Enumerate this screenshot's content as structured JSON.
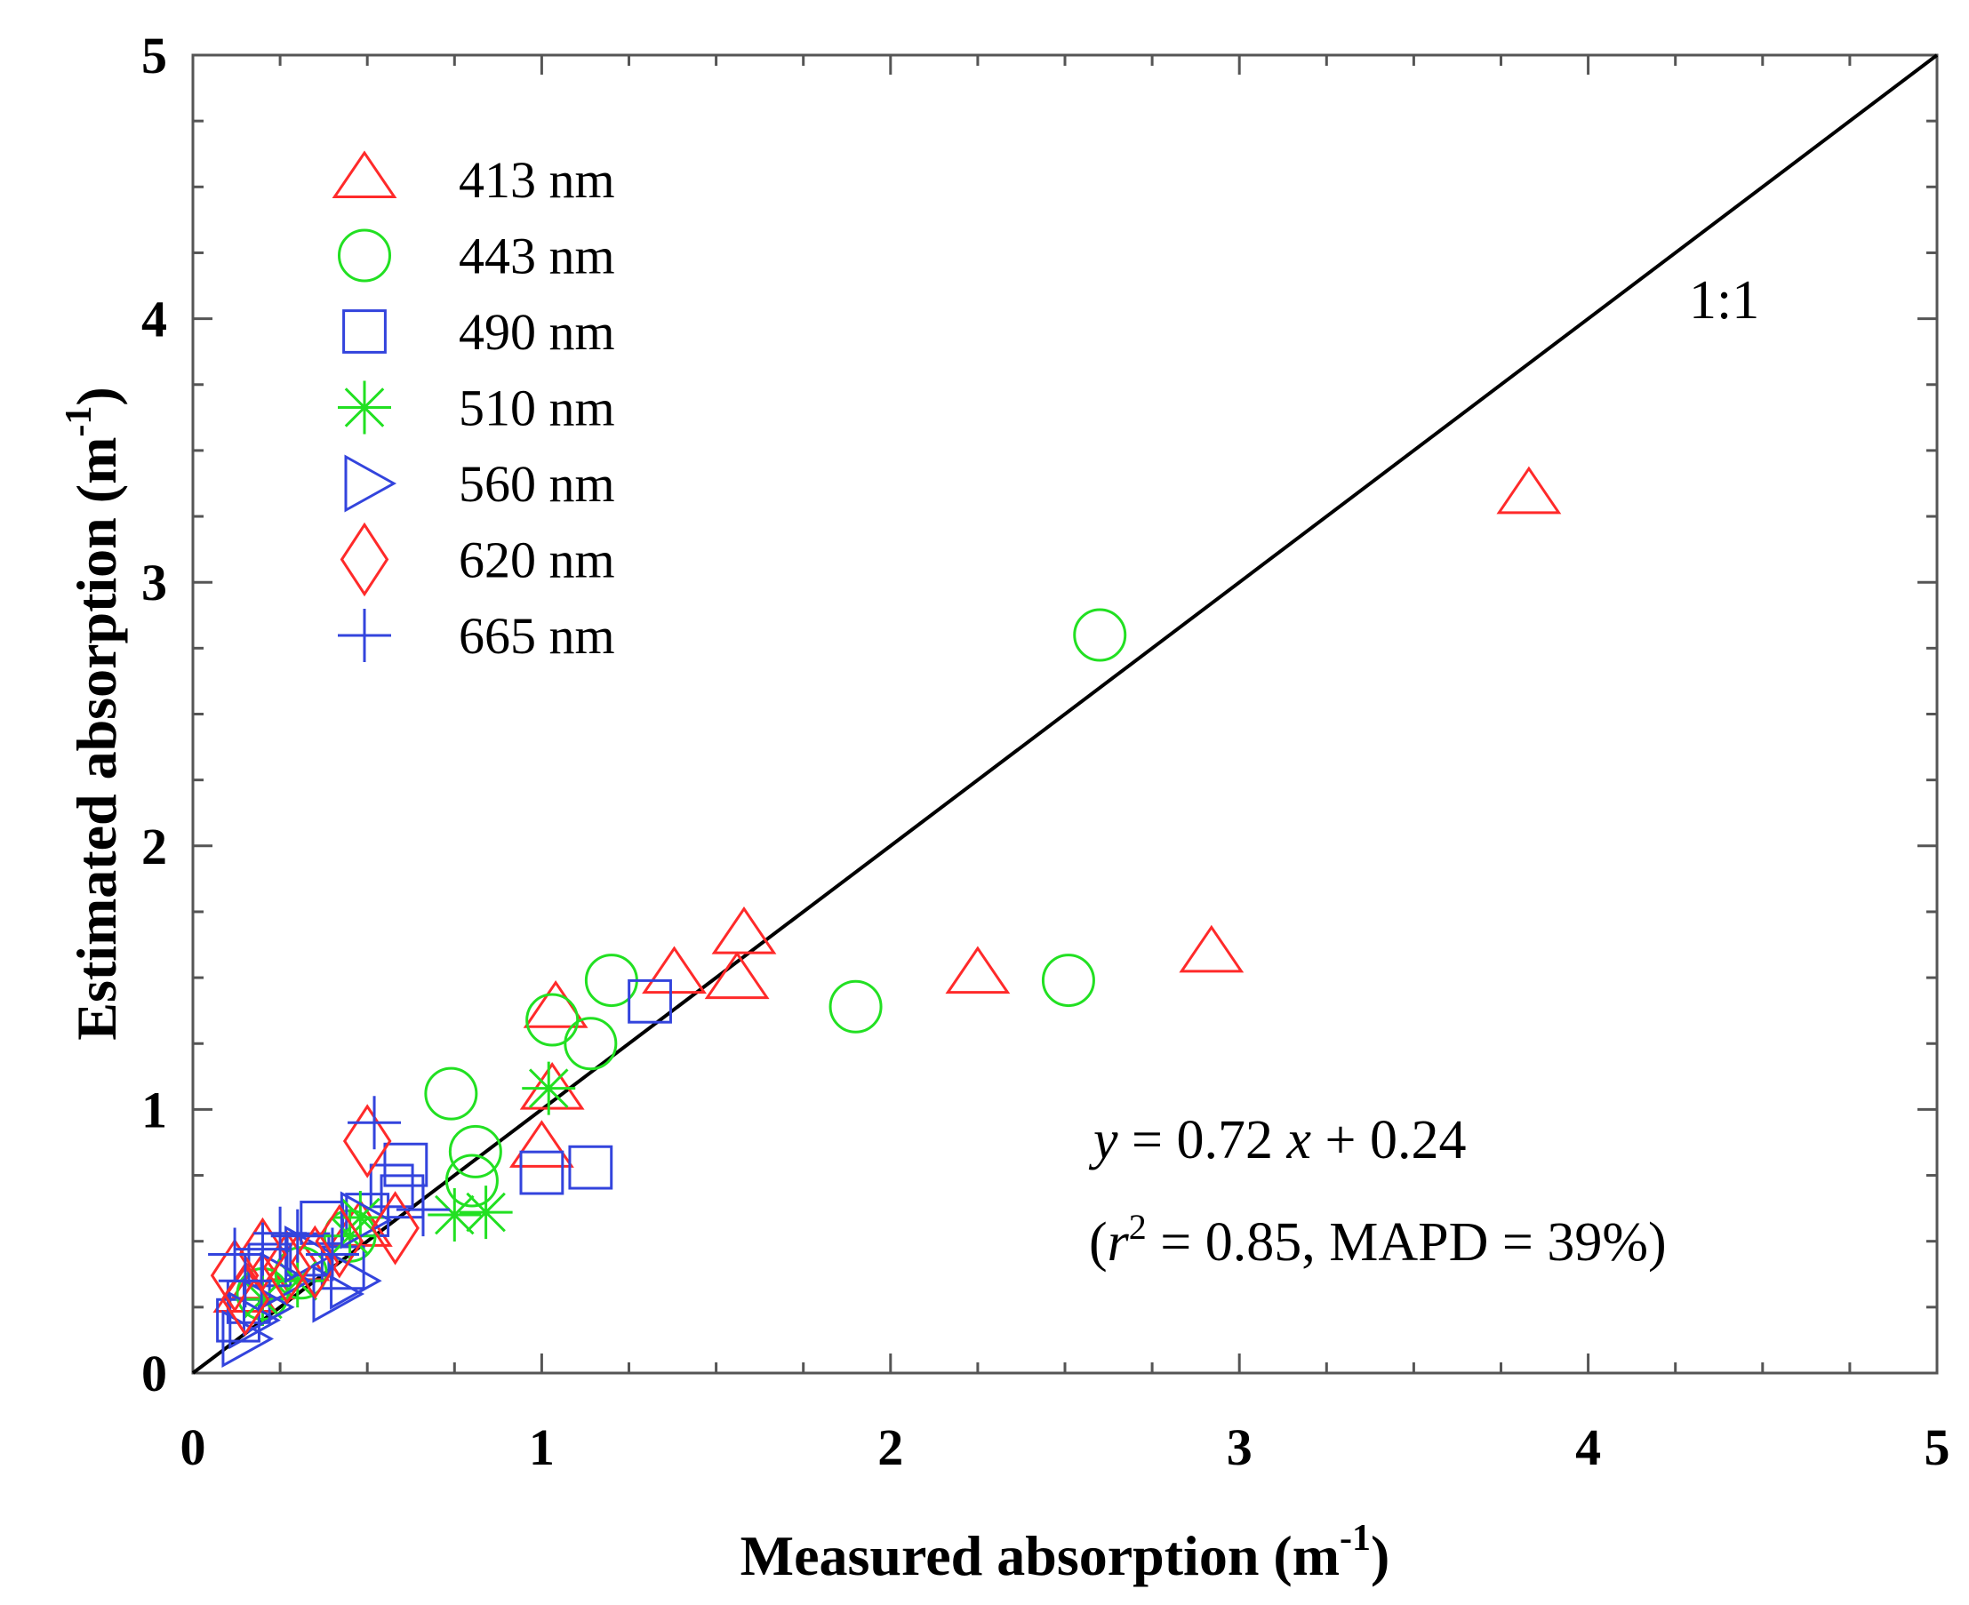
{
  "chart_data": {
    "type": "scatter",
    "xlabel": "Measured absorption (m",
    "ylabel": "Estimated absorption (m",
    "unit_superscript": "-1",
    "unit_close": ")",
    "xlim": [
      0,
      5
    ],
    "ylim": [
      0,
      5
    ],
    "xticks": [
      "0",
      "1",
      "2",
      "3",
      "4",
      "5"
    ],
    "yticks": [
      "0",
      "1",
      "2",
      "3",
      "4",
      "5"
    ],
    "grid": false,
    "legend_position": "top-left",
    "reference_line": {
      "label": "1:1",
      "x": [
        0,
        5
      ],
      "y": [
        0,
        5
      ]
    },
    "fit_equation": {
      "y_italic": "y",
      "eq1": " = 0.72 ",
      "x_italic": "x",
      "eq2": " + 0.24"
    },
    "fit_stats": {
      "open": "(",
      "r_italic": "r",
      "sup": "2",
      "rest": " = 0.85, MAPD = 39%)"
    },
    "series": [
      {
        "name": "413 nm",
        "marker": "triangle-up",
        "color": "#ff2a2a",
        "points": [
          [
            3.83,
            3.33
          ],
          [
            2.92,
            1.59
          ],
          [
            2.25,
            1.51
          ],
          [
            1.58,
            1.66
          ],
          [
            1.56,
            1.49
          ],
          [
            1.38,
            1.51
          ],
          [
            1.04,
            1.38
          ],
          [
            1.03,
            1.07
          ],
          [
            1.0,
            0.85
          ],
          [
            0.48,
            0.55
          ],
          [
            0.3,
            0.42
          ],
          [
            0.2,
            0.35
          ],
          [
            0.15,
            0.3
          ]
        ]
      },
      {
        "name": "443 nm",
        "marker": "circle",
        "color": "#22e022",
        "points": [
          [
            2.6,
            2.8
          ],
          [
            2.51,
            1.49
          ],
          [
            1.9,
            1.39
          ],
          [
            1.2,
            1.49
          ],
          [
            1.14,
            1.25
          ],
          [
            1.03,
            1.34
          ],
          [
            0.74,
            1.06
          ],
          [
            0.81,
            0.84
          ],
          [
            0.8,
            0.73
          ],
          [
            0.45,
            0.52
          ],
          [
            0.31,
            0.38
          ],
          [
            0.2,
            0.3
          ]
        ]
      },
      {
        "name": "490 nm",
        "marker": "square",
        "color": "#3344dd",
        "points": [
          [
            1.31,
            1.41
          ],
          [
            1.14,
            0.78
          ],
          [
            1.0,
            0.76
          ],
          [
            0.61,
            0.79
          ],
          [
            0.6,
            0.67
          ],
          [
            0.57,
            0.71
          ],
          [
            0.5,
            0.6
          ],
          [
            0.37,
            0.57
          ],
          [
            0.33,
            0.45
          ],
          [
            0.43,
            0.4
          ],
          [
            0.22,
            0.41
          ],
          [
            0.16,
            0.27
          ],
          [
            0.13,
            0.2
          ]
        ]
      },
      {
        "name": "510 nm",
        "marker": "asterisk",
        "color": "#22e022",
        "points": [
          [
            1.02,
            1.08
          ],
          [
            0.84,
            0.61
          ],
          [
            0.75,
            0.6
          ],
          [
            0.48,
            0.59
          ],
          [
            0.45,
            0.52
          ],
          [
            0.3,
            0.35
          ],
          [
            0.2,
            0.28
          ]
        ]
      },
      {
        "name": "560 nm",
        "marker": "triangle-right",
        "color": "#3344dd",
        "points": [
          [
            0.48,
            0.58
          ],
          [
            0.45,
            0.35
          ],
          [
            0.4,
            0.3
          ],
          [
            0.32,
            0.45
          ],
          [
            0.25,
            0.35
          ],
          [
            0.2,
            0.25
          ],
          [
            0.16,
            0.2
          ],
          [
            0.14,
            0.13
          ]
        ]
      },
      {
        "name": "620 nm",
        "marker": "diamond",
        "color": "#ff2a2a",
        "points": [
          [
            0.5,
            0.88
          ],
          [
            0.58,
            0.55
          ],
          [
            0.42,
            0.5
          ],
          [
            0.2,
            0.45
          ],
          [
            0.12,
            0.37
          ],
          [
            0.15,
            0.28
          ],
          [
            0.27,
            0.4
          ],
          [
            0.35,
            0.42
          ]
        ]
      },
      {
        "name": "665 nm",
        "marker": "plus",
        "color": "#3344dd",
        "points": [
          [
            0.52,
            0.95
          ],
          [
            0.66,
            0.62
          ],
          [
            0.3,
            0.52
          ],
          [
            0.25,
            0.53
          ],
          [
            0.2,
            0.47
          ],
          [
            0.12,
            0.45
          ],
          [
            0.15,
            0.35
          ],
          [
            0.4,
            0.45
          ]
        ]
      }
    ]
  }
}
